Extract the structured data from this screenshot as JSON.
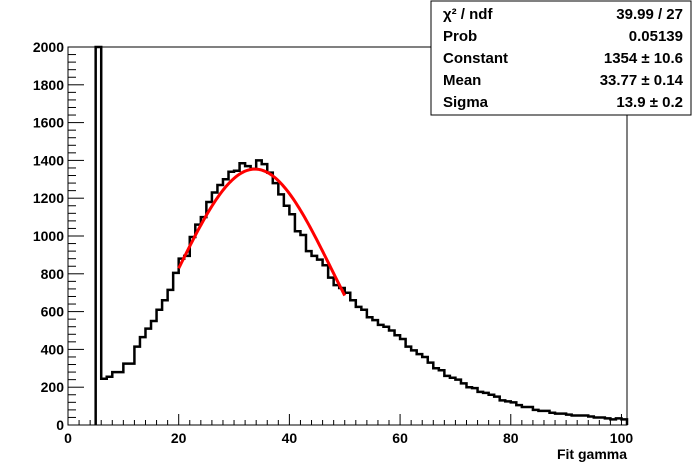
{
  "chart_data": {
    "type": "line",
    "xlabel": "Fit gamma",
    "ylabel": "",
    "xlim": [
      0,
      101
    ],
    "ylim": [
      0,
      2000
    ],
    "grid": false,
    "x_ticks": [
      0,
      20,
      40,
      60,
      80,
      100
    ],
    "y_ticks": [
      0,
      200,
      400,
      600,
      800,
      1000,
      1200,
      1400,
      1600,
      1800,
      2000
    ],
    "bin_width": 1,
    "series": [
      {
        "kind": "histogram",
        "color": "#000000",
        "x": [
          5,
          6,
          7,
          8,
          9,
          10,
          11,
          12,
          13,
          14,
          15,
          16,
          17,
          18,
          19,
          20,
          21,
          22,
          23,
          24,
          25,
          26,
          27,
          28,
          29,
          30,
          31,
          32,
          33,
          34,
          35,
          36,
          37,
          38,
          39,
          40,
          41,
          42,
          43,
          44,
          45,
          46,
          47,
          48,
          49,
          50,
          51,
          52,
          53,
          54,
          55,
          56,
          57,
          58,
          59,
          60,
          61,
          62,
          63,
          64,
          65,
          66,
          67,
          68,
          69,
          70,
          71,
          72,
          73,
          74,
          75,
          76,
          77,
          78,
          79,
          80,
          81,
          82,
          83,
          84,
          85,
          86,
          87,
          88,
          89,
          90,
          91,
          92,
          93,
          94,
          95,
          96,
          97,
          98,
          99,
          100
        ],
        "values": [
          2000,
          245,
          255,
          280,
          280,
          325,
          325,
          415,
          465,
          510,
          550,
          610,
          660,
          715,
          805,
          880,
          895,
          995,
          1060,
          1100,
          1180,
          1230,
          1270,
          1300,
          1340,
          1345,
          1385,
          1370,
          1355,
          1400,
          1380,
          1335,
          1280,
          1220,
          1160,
          1115,
          1025,
          1005,
          920,
          895,
          875,
          845,
          780,
          740,
          725,
          700,
          660,
          625,
          610,
          570,
          555,
          530,
          520,
          500,
          475,
          455,
          415,
          395,
          375,
          360,
          330,
          300,
          290,
          260,
          250,
          240,
          220,
          200,
          195,
          175,
          170,
          160,
          150,
          130,
          125,
          120,
          105,
          95,
          95,
          80,
          75,
          75,
          65,
          60,
          60,
          55,
          50,
          50,
          50,
          45,
          40,
          40,
          35,
          30,
          35,
          30
        ]
      },
      {
        "kind": "gaussian-fit",
        "color": "#ff0000",
        "range": [
          20,
          50
        ]
      }
    ],
    "stats": {
      "rows": [
        {
          "label": "χ² / ndf",
          "value": "39.99 / 27"
        },
        {
          "label": "Prob",
          "value": "0.05139"
        },
        {
          "label": "Constant",
          "value": "1354 ± 10.6"
        },
        {
          "label": "Mean",
          "value": "33.77 ± 0.14"
        },
        {
          "label": "Sigma",
          "value": "13.9 ± 0.2"
        }
      ],
      "constant": 1354,
      "mean": 33.77,
      "sigma": 13.9
    }
  }
}
